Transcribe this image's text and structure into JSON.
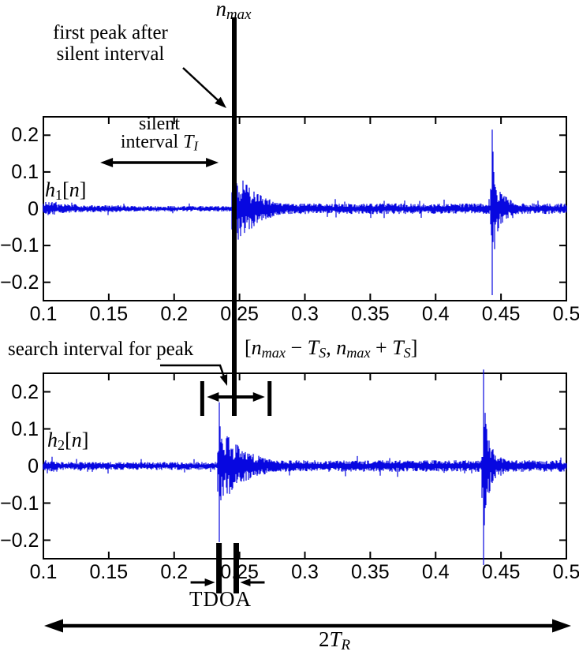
{
  "figure": {
    "waveform_color": "#0707E0",
    "axis_color": "#000000",
    "annotations": {
      "nmax": [
        {
          "t": "n",
          "s": "i"
        },
        {
          "t": "max",
          "s": "isub"
        }
      ],
      "first_peak_line1": "first peak after",
      "first_peak_line2": "silent interval",
      "silent_line1": "silent",
      "silent_line2": [
        {
          "t": "interval ",
          "s": "n"
        },
        {
          "t": "T",
          "s": "i"
        },
        {
          "t": "I",
          "s": "isub"
        }
      ],
      "h1_label": [
        {
          "t": "h",
          "s": "i"
        },
        {
          "t": "1",
          "s": "sub"
        },
        {
          "t": "[",
          "s": "n"
        },
        {
          "t": "n",
          "s": "i"
        },
        {
          "t": "]",
          "s": "n"
        }
      ],
      "h2_label": [
        {
          "t": "h",
          "s": "i"
        },
        {
          "t": "2",
          "s": "sub"
        },
        {
          "t": "[",
          "s": "n"
        },
        {
          "t": "n",
          "s": "i"
        },
        {
          "t": "]",
          "s": "n"
        }
      ],
      "search_label": "search interval for peak",
      "search_formula": [
        {
          "t": "[",
          "s": "n"
        },
        {
          "t": "n",
          "s": "i"
        },
        {
          "t": "max",
          "s": "isub"
        },
        {
          "t": " − ",
          "s": "n"
        },
        {
          "t": "T",
          "s": "i"
        },
        {
          "t": "S",
          "s": "isub"
        },
        {
          "t": ", ",
          "s": "n"
        },
        {
          "t": "n",
          "s": "i"
        },
        {
          "t": "max",
          "s": "isub"
        },
        {
          "t": " + ",
          "s": "n"
        },
        {
          "t": "T",
          "s": "i"
        },
        {
          "t": "S",
          "s": "isub"
        },
        {
          "t": "]",
          "s": "n"
        }
      ],
      "tdoa_label": "TDOA",
      "tr_label": [
        {
          "t": "2",
          "s": "n"
        },
        {
          "t": "T",
          "s": "i"
        },
        {
          "t": "R",
          "s": "isub"
        }
      ]
    }
  },
  "markers": {
    "nmax_x": 0.246,
    "search_interval_from": 0.2215,
    "search_interval_to": 0.273,
    "silent_arrow_from": 0.1435,
    "silent_arrow_to": 0.234,
    "tdoa_from": 0.2343,
    "tdoa_to": 0.2475
  },
  "chart_data": [
    {
      "panel": "top",
      "type": "line",
      "series_name": "h1[n]",
      "xlim": [
        0.1,
        0.5
      ],
      "ylim": [
        -0.25,
        0.25
      ],
      "xticks": [
        0.1,
        0.15,
        0.2,
        0.25,
        0.3,
        0.35,
        0.4,
        0.45,
        0.5
      ],
      "xticklabels": [
        "0.1",
        "0.15",
        "0.2",
        "0.25",
        "0.3",
        "0.35",
        "0.4",
        "0.45",
        "0.5"
      ],
      "yticks": [
        {
          "v": 0.2,
          "label": "0.2"
        },
        {
          "v": 0.1,
          "label": "0.1"
        },
        {
          "v": 0,
          "label": "0"
        },
        {
          "v": -0.1,
          "label": "−0.1"
        },
        {
          "v": -0.2,
          "label": "−0.2"
        }
      ],
      "grid": false,
      "noise_floor": 0.0105,
      "noise_segments": [
        {
          "from": 0.125,
          "amp": 0.008
        },
        {
          "from": 0.16,
          "amp": 0.0062
        }
      ],
      "bursts": [
        {
          "x": 0.2455,
          "peak": 0.25,
          "trough": -0.25,
          "tail_amp": 0.12,
          "tau": 0.018,
          "floor_after": 0.012,
          "overshoot": false
        },
        {
          "x": 0.443,
          "peak": 0.215,
          "trough": -0.235,
          "tail_amp": 0.1,
          "tau": 0.01,
          "floor_after": 0.012,
          "overshoot": false
        }
      ]
    },
    {
      "panel": "bottom",
      "type": "line",
      "series_name": "h2[n]",
      "xlim": [
        0.1,
        0.5
      ],
      "ylim": [
        -0.25,
        0.25
      ],
      "xticks": [
        0.1,
        0.15,
        0.2,
        0.25,
        0.3,
        0.35,
        0.4,
        0.45,
        0.5
      ],
      "xticklabels": [
        "0.1",
        "0.15",
        "0.2",
        "0.25",
        "0.3",
        "0.35",
        "0.4",
        "0.45",
        "0.5"
      ],
      "yticks": [
        {
          "v": 0.2,
          "label": "0.2"
        },
        {
          "v": 0.1,
          "label": "0.1"
        },
        {
          "v": 0,
          "label": "0"
        },
        {
          "v": -0.1,
          "label": "−0.1"
        },
        {
          "v": -0.2,
          "label": "−0.2"
        }
      ],
      "grid": false,
      "noise_floor": 0.009,
      "noise_segments": [],
      "bursts": [
        {
          "x": 0.2343,
          "peak": 0.172,
          "trough": -0.205,
          "tail_amp": 0.11,
          "tau": 0.022,
          "floor_after": 0.013,
          "overshoot": false
        },
        {
          "x": 0.4368,
          "peak": 0.26,
          "trough": -0.27,
          "tail_amp": 0.1,
          "tau": 0.01,
          "floor_after": 0.013,
          "overshoot": true
        }
      ]
    }
  ]
}
